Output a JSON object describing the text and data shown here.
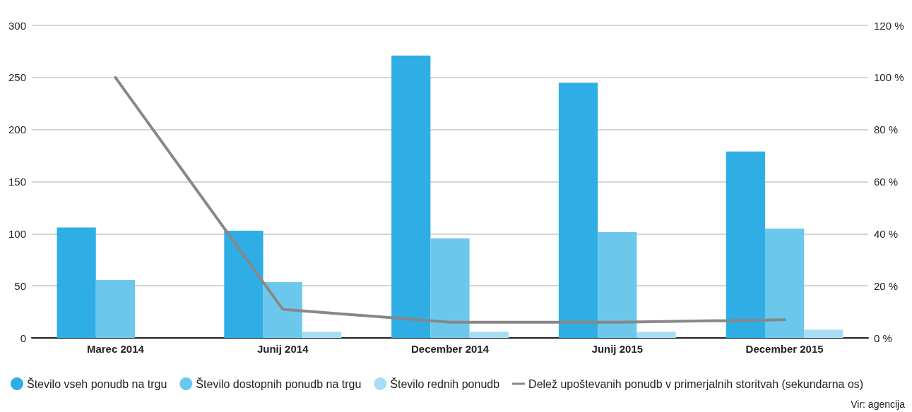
{
  "chart_data": {
    "type": "bar",
    "categories": [
      "Marec 2014",
      "Junij 2014",
      "December 2014",
      "Junij 2015",
      "December 2015"
    ],
    "series": [
      {
        "name": "Število vseh ponudb na trgu",
        "color": "#2eaee4",
        "values": [
          106,
          103,
          271,
          245,
          179
        ]
      },
      {
        "name": "Število dostopnih ponudb na trgu",
        "color": "#6cc7ec",
        "values": [
          55.5,
          53.5,
          95.5,
          101.5,
          105
        ]
      },
      {
        "name": "Število rednih ponudb",
        "color": "#a8def5",
        "values": [
          null,
          6,
          6,
          6,
          8
        ]
      },
      {
        "name": "Delež upoštevanih ponudb v primerjalnih storitvah (sekundarna os)",
        "type": "line",
        "axis": "y2",
        "color": "#888888",
        "values": [
          100,
          11,
          6,
          6,
          7
        ]
      }
    ],
    "ylim": [
      0,
      300
    ],
    "yticks": [
      0,
      50,
      100,
      150,
      200,
      250,
      300
    ],
    "y2lim": [
      0,
      120
    ],
    "y2ticks": [
      {
        "value": 0,
        "label": "0 %"
      },
      {
        "value": 20,
        "label": "20 %"
      },
      {
        "value": 40,
        "label": "40 %"
      },
      {
        "value": 60,
        "label": "60 %"
      },
      {
        "value": 80,
        "label": "80 %"
      },
      {
        "value": 100,
        "label": "100 %"
      },
      {
        "value": 120,
        "label": "120 %"
      }
    ],
    "grid": "y",
    "legend": "bottom left",
    "marker": "none",
    "line_style": "solid",
    "annotations": [
      "Vir: agencija"
    ]
  }
}
